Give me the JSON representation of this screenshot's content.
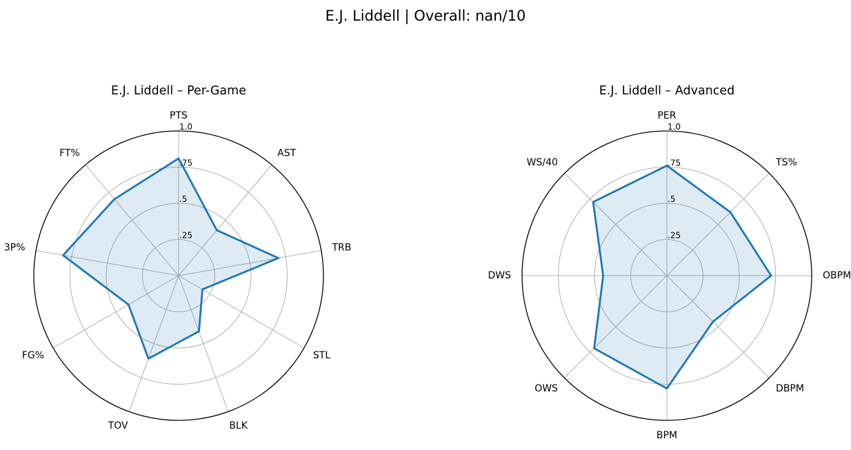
{
  "figure": {
    "suptitle": "E.J. Liddell | Overall: nan/10"
  },
  "chart_data": [
    {
      "type": "radar",
      "title": "E.J. Liddell – Per-Game",
      "categories": [
        "PTS",
        "AST",
        "TRB",
        "STL",
        "BLK",
        "TOV",
        "FG%",
        "3P%",
        "FT%"
      ],
      "values": [
        0.81,
        0.41,
        0.7,
        0.19,
        0.41,
        0.61,
        0.4,
        0.81,
        0.69
      ],
      "rticks": [
        0.25,
        0.5,
        0.75,
        1.0
      ],
      "rtick_labels": [
        ".25",
        ".5",
        ".75",
        "1.0"
      ],
      "rlim": [
        0,
        1
      ],
      "color": "#1f77b4",
      "grid": true
    },
    {
      "type": "radar",
      "title": "E.J. Liddell – Advanced",
      "categories": [
        "PER",
        "TS%",
        "OBPM",
        "DBPM",
        "BPM",
        "OWS",
        "DWS",
        "WS/40"
      ],
      "values": [
        0.76,
        0.62,
        0.72,
        0.45,
        0.78,
        0.71,
        0.44,
        0.72
      ],
      "rticks": [
        0.25,
        0.5,
        0.75,
        1.0
      ],
      "rtick_labels": [
        ".25",
        ".5",
        ".75",
        "1.0"
      ],
      "rlim": [
        0,
        1
      ],
      "color": "#1f77b4",
      "grid": true
    }
  ]
}
